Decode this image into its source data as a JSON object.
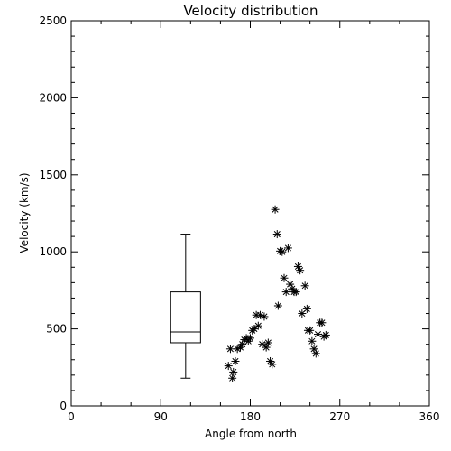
{
  "chart_data": {
    "type": "scatter",
    "title": "Velocity distribution",
    "xlabel": "Angle from north",
    "ylabel": "Velocity (km/s)",
    "xlim": [
      0,
      360
    ],
    "ylim": [
      0,
      2500
    ],
    "xticks": [
      0,
      90,
      180,
      270,
      360
    ],
    "xtick_labels": [
      "0",
      "90",
      "180",
      "270",
      "360"
    ],
    "yticks": [
      0,
      500,
      1000,
      1500,
      2000,
      2500
    ],
    "ytick_labels": [
      "0",
      "500",
      "1000",
      "1500",
      "2000",
      "2500"
    ],
    "grid": false,
    "marker": "asterisk",
    "points": [
      [
        158,
        260
      ],
      [
        160,
        370
      ],
      [
        162,
        180
      ],
      [
        163,
        220
      ],
      [
        165,
        290
      ],
      [
        167,
        370
      ],
      [
        170,
        380
      ],
      [
        172,
        400
      ],
      [
        174,
        430
      ],
      [
        176,
        440
      ],
      [
        178,
        420
      ],
      [
        180,
        440
      ],
      [
        182,
        490
      ],
      [
        184,
        500
      ],
      [
        186,
        590
      ],
      [
        188,
        520
      ],
      [
        190,
        590
      ],
      [
        192,
        400
      ],
      [
        194,
        580
      ],
      [
        196,
        380
      ],
      [
        198,
        410
      ],
      [
        200,
        290
      ],
      [
        202,
        270
      ],
      [
        205,
        1275
      ],
      [
        207,
        1115
      ],
      [
        208,
        650
      ],
      [
        210,
        1005
      ],
      [
        212,
        1000
      ],
      [
        214,
        830
      ],
      [
        216,
        740
      ],
      [
        218,
        1025
      ],
      [
        220,
        790
      ],
      [
        222,
        760
      ],
      [
        224,
        740
      ],
      [
        226,
        740
      ],
      [
        228,
        905
      ],
      [
        230,
        880
      ],
      [
        232,
        600
      ],
      [
        235,
        780
      ],
      [
        237,
        630
      ],
      [
        238,
        490
      ],
      [
        240,
        490
      ],
      [
        242,
        420
      ],
      [
        244,
        370
      ],
      [
        246,
        340
      ],
      [
        248,
        465
      ],
      [
        250,
        540
      ],
      [
        252,
        540
      ],
      [
        254,
        450
      ],
      [
        256,
        460
      ]
    ],
    "boxplot": {
      "x": 115,
      "width": 30,
      "whisker_low": 180,
      "q1": 410,
      "median": 480,
      "q3": 740,
      "whisker_high": 1115
    }
  }
}
